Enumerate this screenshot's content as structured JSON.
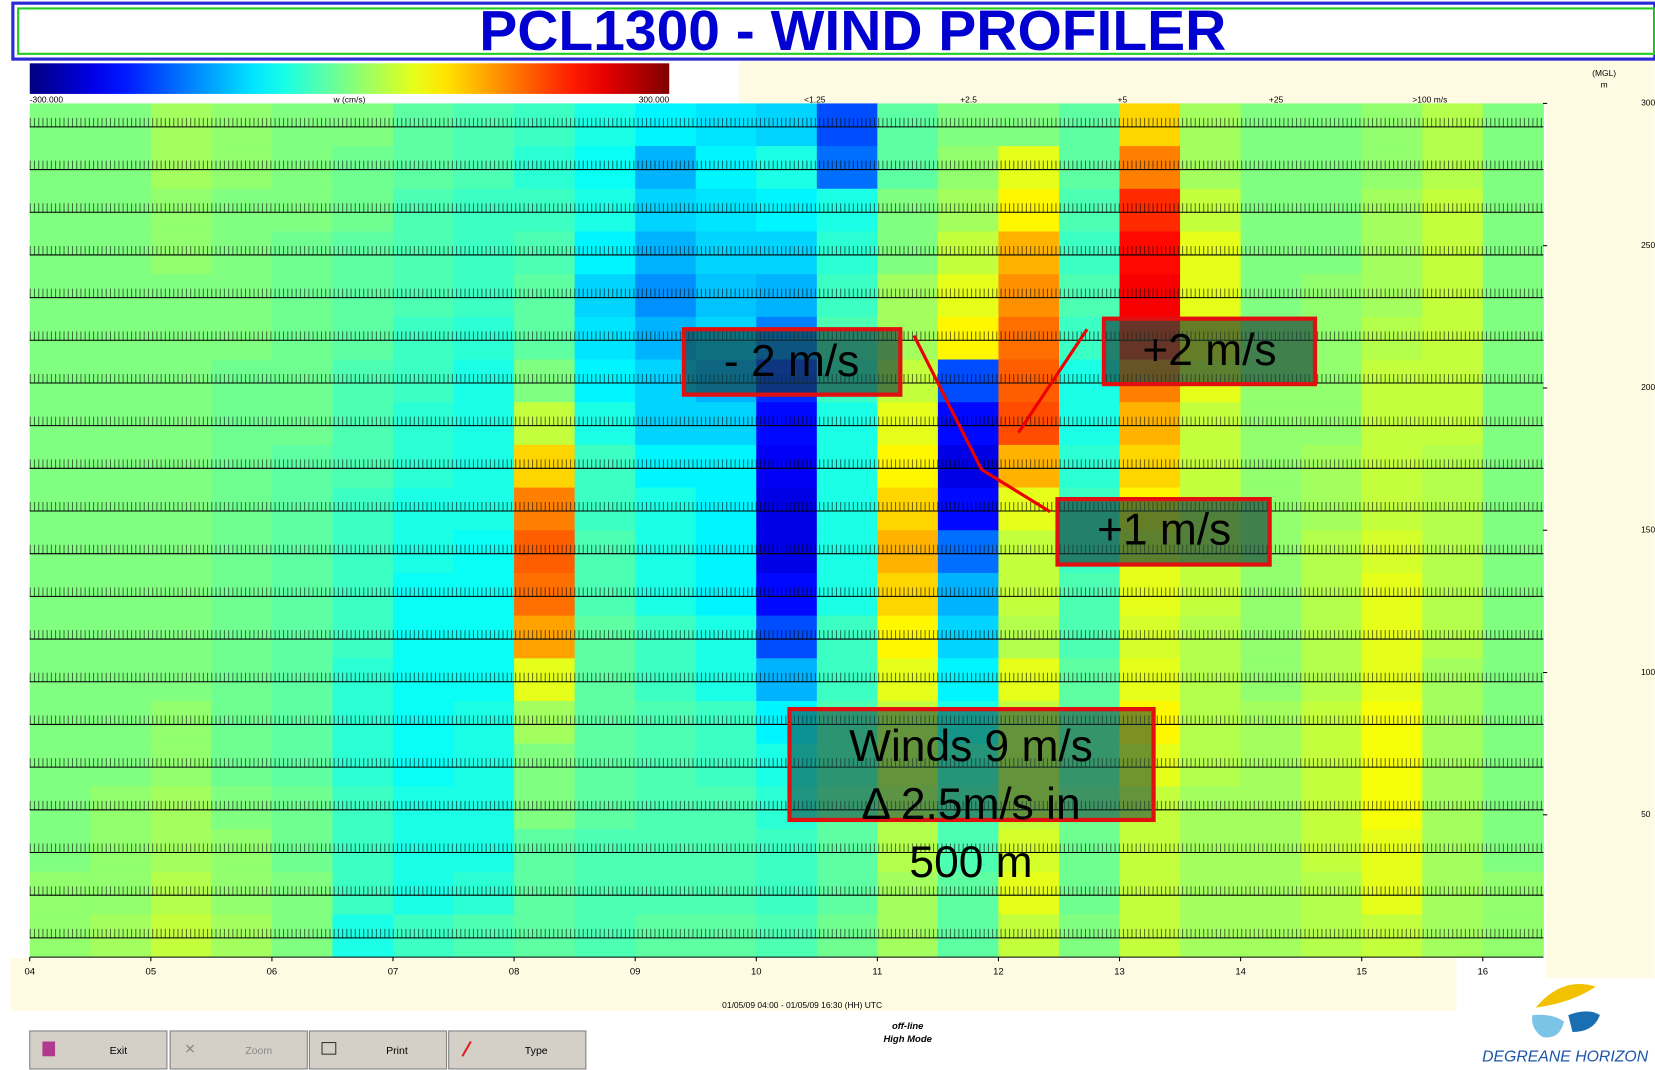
{
  "header": {
    "title": "PCL1300 - WIND PROFILER"
  },
  "chart_data": {
    "type": "heatmap",
    "colormap": "jet",
    "color_scale": {
      "label": "w (cm/s)",
      "lim": [
        -300,
        300
      ],
      "ticks": [
        {
          "value": -300,
          "label": "-300.000"
        },
        {
          "value": 300,
          "label": "300.000"
        }
      ]
    },
    "barb_legend": [
      "<1.25",
      "+2.5",
      "+5",
      "+25",
      ">100 m/s"
    ],
    "ylabel": [
      "(MGL)",
      "m"
    ],
    "xlabel": "01/05/09 04:00 - 01/05/09 16:30 (HH) UTC",
    "xlim": [
      4,
      16.5
    ],
    "xticks": [
      {
        "value": 4,
        "label": "04"
      },
      {
        "value": 5,
        "label": "05"
      },
      {
        "value": 6,
        "label": "06"
      },
      {
        "value": 7,
        "label": "07"
      },
      {
        "value": 8,
        "label": "08"
      },
      {
        "value": 9,
        "label": "09"
      },
      10,
      11,
      12,
      13,
      14,
      15,
      16
    ],
    "ylim": [
      0,
      300
    ],
    "yticks": [
      300,
      250,
      200,
      150,
      100,
      50
    ],
    "x_edges": [
      4,
      4.5,
      5,
      5.5,
      6,
      6.5,
      7,
      7.5,
      8,
      8.5,
      9,
      9.5,
      10,
      10.5,
      11,
      11.5,
      12,
      12.5,
      13,
      13.5,
      14,
      14.5,
      15,
      15.5,
      16,
      16.5
    ],
    "y_edges": [
      300,
      285,
      270,
      255,
      240,
      225,
      210,
      195,
      180,
      165,
      150,
      135,
      120,
      105,
      90,
      75,
      60,
      45,
      30,
      15,
      0
    ],
    "values": [
      [
        0,
        0,
        20,
        10,
        0,
        0,
        -20,
        -30,
        -40,
        -60,
        -80,
        -90,
        -100,
        -180,
        -20,
        0,
        0,
        -20,
        100,
        20,
        0,
        0,
        10,
        30,
        0
      ],
      [
        0,
        0,
        20,
        10,
        0,
        -10,
        -20,
        -30,
        -50,
        -70,
        -120,
        -80,
        -60,
        -160,
        -20,
        10,
        60,
        -20,
        150,
        20,
        0,
        0,
        10,
        30,
        0
      ],
      [
        0,
        0,
        10,
        0,
        0,
        -10,
        -30,
        -40,
        -40,
        -60,
        -100,
        -90,
        -80,
        -60,
        0,
        20,
        80,
        -30,
        200,
        40,
        0,
        0,
        20,
        40,
        0
      ],
      [
        0,
        0,
        10,
        0,
        -10,
        -20,
        -30,
        -40,
        -30,
        -80,
        -120,
        -100,
        -100,
        -50,
        0,
        40,
        120,
        -40,
        220,
        60,
        0,
        0,
        20,
        40,
        0
      ],
      [
        0,
        0,
        0,
        0,
        -10,
        -20,
        -30,
        -40,
        -20,
        -100,
        -140,
        -110,
        -120,
        -40,
        20,
        60,
        140,
        -30,
        230,
        60,
        0,
        10,
        20,
        40,
        0
      ],
      [
        0,
        0,
        0,
        0,
        -10,
        -20,
        -40,
        -50,
        -20,
        -90,
        -120,
        -100,
        -150,
        -30,
        20,
        80,
        160,
        -40,
        200,
        80,
        10,
        10,
        30,
        40,
        0
      ],
      [
        0,
        0,
        0,
        -10,
        -10,
        -30,
        -40,
        -60,
        0,
        -80,
        -100,
        -120,
        -200,
        -40,
        40,
        -180,
        170,
        -60,
        150,
        60,
        10,
        10,
        40,
        40,
        0
      ],
      [
        0,
        0,
        0,
        -10,
        -10,
        -30,
        -50,
        -60,
        40,
        -60,
        -100,
        -100,
        -220,
        -60,
        60,
        -220,
        180,
        -60,
        120,
        40,
        10,
        10,
        40,
        40,
        0
      ],
      [
        0,
        0,
        0,
        -10,
        -20,
        -30,
        -50,
        -60,
        100,
        -40,
        -80,
        -80,
        -230,
        -60,
        80,
        -240,
        120,
        -50,
        100,
        40,
        10,
        20,
        40,
        30,
        0
      ],
      [
        0,
        0,
        0,
        -10,
        -20,
        -40,
        -60,
        -60,
        150,
        -40,
        -60,
        -80,
        -240,
        -60,
        100,
        -220,
        60,
        -40,
        80,
        40,
        10,
        20,
        40,
        30,
        0
      ],
      [
        0,
        0,
        0,
        -10,
        -20,
        -40,
        -60,
        -70,
        170,
        -30,
        -60,
        -80,
        -240,
        -60,
        120,
        -160,
        40,
        -40,
        60,
        40,
        10,
        30,
        50,
        30,
        0
      ],
      [
        0,
        0,
        0,
        -10,
        -20,
        -40,
        -70,
        -70,
        160,
        -30,
        -60,
        -80,
        -220,
        -60,
        100,
        -120,
        40,
        -30,
        60,
        40,
        10,
        30,
        60,
        30,
        0
      ],
      [
        0,
        0,
        0,
        -10,
        -20,
        -40,
        -70,
        -70,
        130,
        -20,
        -40,
        -60,
        -180,
        -40,
        80,
        -100,
        30,
        -30,
        50,
        30,
        10,
        30,
        60,
        30,
        0
      ],
      [
        0,
        0,
        0,
        -10,
        -20,
        -50,
        -70,
        -70,
        60,
        -20,
        -40,
        -60,
        -120,
        -40,
        60,
        -80,
        60,
        -20,
        60,
        30,
        10,
        30,
        60,
        20,
        0
      ],
      [
        0,
        0,
        10,
        -10,
        -20,
        -50,
        -70,
        -60,
        20,
        -20,
        -30,
        -40,
        -80,
        -30,
        40,
        -60,
        40,
        -20,
        80,
        30,
        20,
        40,
        70,
        20,
        0
      ],
      [
        0,
        0,
        10,
        -10,
        -20,
        -50,
        -70,
        -60,
        0,
        -20,
        -30,
        -40,
        -60,
        -30,
        40,
        -40,
        40,
        -20,
        60,
        30,
        20,
        40,
        70,
        20,
        0
      ],
      [
        0,
        10,
        20,
        0,
        -10,
        -40,
        -60,
        -60,
        0,
        -20,
        -30,
        -30,
        -50,
        -20,
        30,
        -30,
        40,
        -10,
        40,
        20,
        20,
        40,
        70,
        20,
        0
      ],
      [
        0,
        10,
        20,
        10,
        -10,
        -40,
        -60,
        -60,
        -20,
        -30,
        -30,
        -30,
        -40,
        -20,
        30,
        -30,
        50,
        -10,
        40,
        20,
        20,
        40,
        60,
        20,
        0
      ],
      [
        10,
        10,
        30,
        10,
        0,
        -40,
        -60,
        -50,
        -20,
        -30,
        -30,
        -30,
        -40,
        -20,
        20,
        -20,
        60,
        -10,
        40,
        20,
        20,
        30,
        60,
        20,
        10
      ],
      [
        10,
        20,
        40,
        20,
        0,
        -60,
        -40,
        -30,
        -20,
        -30,
        -20,
        -20,
        -30,
        -10,
        20,
        -20,
        40,
        0,
        40,
        20,
        20,
        30,
        40,
        20,
        10
      ]
    ]
  },
  "annotations": [
    "- 2 m/s",
    "+2 m/s",
    "+1 m/s"
  ],
  "note": [
    "Winds 9 m/s",
    "Δ 2.5m/s in",
    "500 m"
  ],
  "status": [
    "off-line",
    "High Mode"
  ],
  "buttons": [
    "Exit",
    "Zoom",
    "Print",
    "Type"
  ],
  "logo": "DEGREANE HORIZON"
}
